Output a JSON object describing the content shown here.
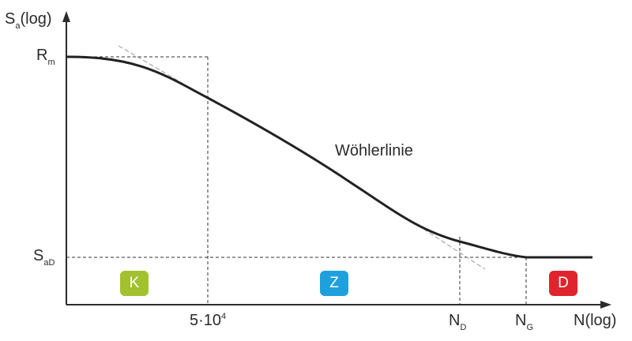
{
  "axis": {
    "y_symbol": "S",
    "y_subscript": "a",
    "y_suffix": "(log)",
    "x_label": "N(log)"
  },
  "y_ticks": {
    "rm_main": "R",
    "rm_sub": "m",
    "sad_main": "S",
    "sad_sub": "aD"
  },
  "x_ticks": {
    "n1_base": "5·10",
    "n1_exp": "4",
    "nd_main": "N",
    "nd_sub": "D",
    "ng_main": "N",
    "ng_sub": "G"
  },
  "curve_label": "Wöhlerlinie",
  "zones": [
    {
      "label": "K",
      "color": "#a3c12f"
    },
    {
      "label": "Z",
      "color": "#1ea0dc"
    },
    {
      "label": "D",
      "color": "#e0242d"
    }
  ]
}
